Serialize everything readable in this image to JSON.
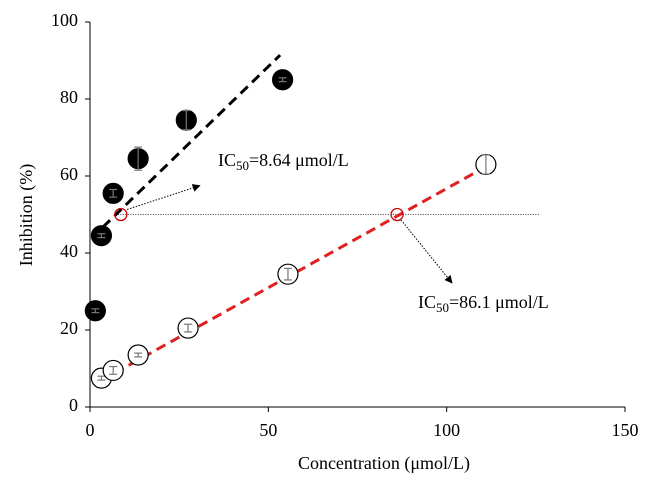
{
  "chart_data": {
    "type": "scatter",
    "xlabel": "Concentration (μmol/L)",
    "ylabel": "Inhibition (%)",
    "xlim": [
      0,
      150
    ],
    "xticks": [
      0,
      50,
      100,
      150
    ],
    "ylim": [
      0,
      100
    ],
    "yticks": [
      0,
      20,
      40,
      60,
      80,
      100
    ],
    "series": [
      {
        "color": "#000000",
        "fill": "#000000",
        "x": [
          1.5,
          3.2,
          6.5,
          13.5,
          27,
          54
        ],
        "values": [
          25,
          44.5,
          55.5,
          64.5,
          74.5,
          85
        ],
        "errors": [
          0.5,
          0.5,
          1,
          3,
          2.5,
          0.5
        ]
      },
      {
        "color": "#000000",
        "fill": "#ffffff",
        "x": [
          3.2,
          6.5,
          13.5,
          27.5,
          55.5,
          111
        ],
        "values": [
          7.5,
          9.5,
          13.5,
          20.5,
          34.5,
          63
        ],
        "errors": [
          0.5,
          1,
          0.5,
          1,
          1.5,
          2.5
        ]
      }
    ],
    "fits": [
      {
        "color": "#000000",
        "x": [
          3.6,
          53.3
        ],
        "values": [
          46.7,
          91.4
        ]
      },
      {
        "color": "#e02020",
        "x": [
          3,
          110.2
        ],
        "values": [
          6.8,
          62
        ]
      }
    ],
    "reference_line": {
      "value": 50,
      "x": [
        7.8,
        126
      ]
    },
    "ic50_points": {
      "color": "#d00000",
      "x": [
        8.64,
        86.1
      ],
      "values": [
        50,
        50
      ]
    },
    "annotations": [
      {
        "parts": [
          "IC",
          "50",
          "=8.64 μmol/L"
        ],
        "arrow_x": [
          10.4,
          30.8
        ],
        "arrow_y": [
          51.3,
          57.5
        ]
      },
      {
        "parts": [
          "IC",
          "50",
          "=86.1 μmol/L"
        ],
        "arrow_x": [
          87.2,
          101.5
        ],
        "arrow_y": [
          48.6,
          32.2
        ]
      }
    ]
  }
}
